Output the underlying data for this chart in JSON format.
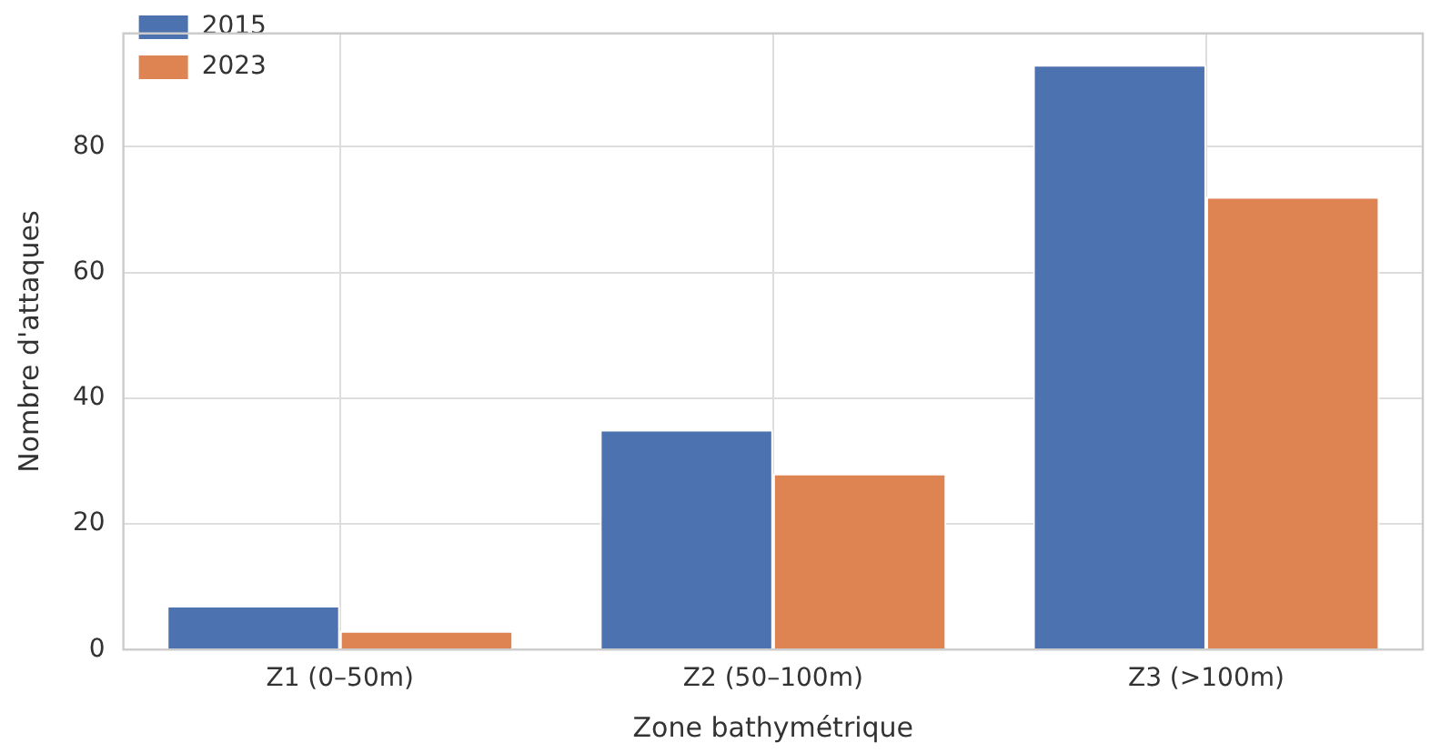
{
  "chart_data": {
    "type": "bar",
    "xlabel": "Zone bathymétrique",
    "ylabel": "Nombre d'attaques",
    "categories": [
      "Z1 (0–50m)",
      "Z2 (50–100m)",
      "Z3 (>100m)"
    ],
    "series": [
      {
        "name": "2015",
        "color": "#4c72b0",
        "values": [
          7,
          35,
          93
        ]
      },
      {
        "name": "2023",
        "color": "#dd8452",
        "values": [
          3,
          28,
          72
        ]
      }
    ],
    "ylim": [
      0,
      98
    ],
    "yticks": [
      0,
      20,
      40,
      60,
      80
    ],
    "grid": true,
    "legend": "top left"
  }
}
